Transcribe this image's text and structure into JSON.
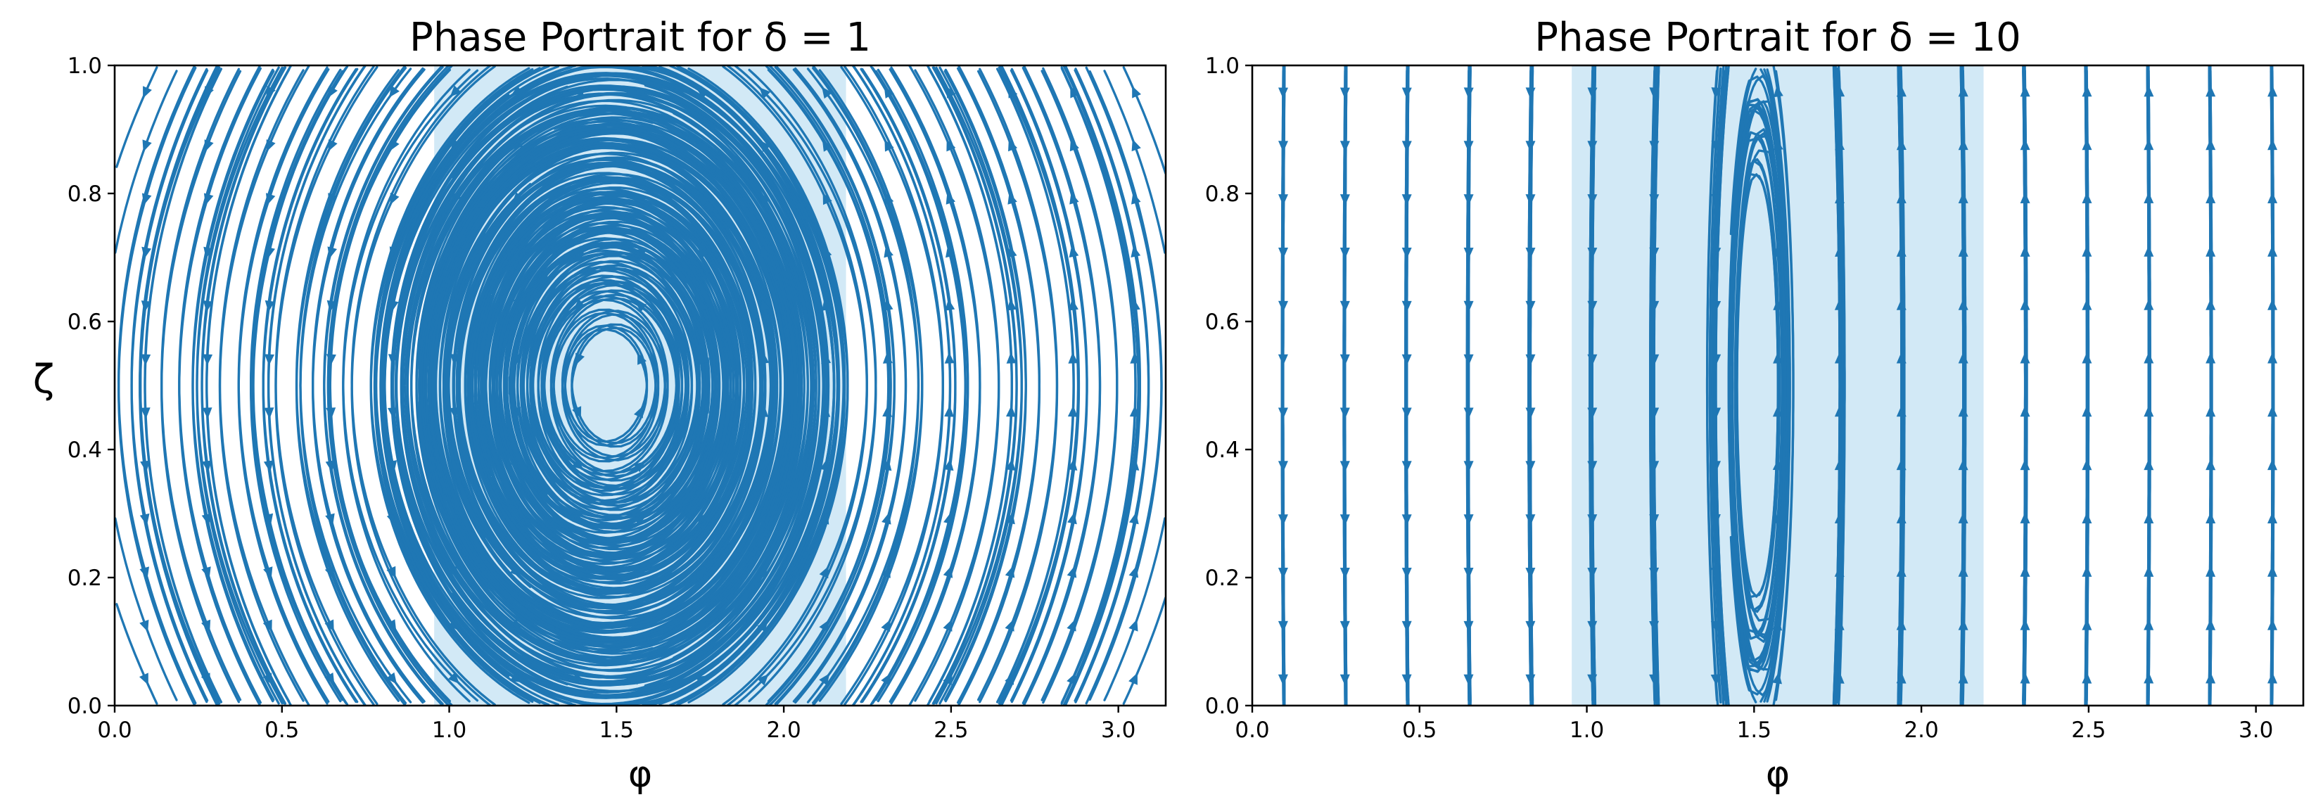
{
  "chart_data": [
    {
      "type": "streamplot",
      "title": "Phase Portrait for δ = 1",
      "delta": 1,
      "xlabel": "φ",
      "ylabel": "ζ",
      "xlim": [
        0.0,
        3.1416
      ],
      "ylim": [
        0.0,
        1.0
      ],
      "xticks": [
        "0.0",
        "0.5",
        "1.0",
        "1.5",
        "2.0",
        "2.5",
        "3.0"
      ],
      "yticks": [
        "0.0",
        "0.2",
        "0.4",
        "0.6",
        "0.8",
        "1.0"
      ],
      "highlight_region": {
        "x": [
          0.955,
          2.186
        ],
        "color": "#d2e9f6"
      },
      "stream_color": "#1f77b4",
      "grid": false,
      "legend": false
    },
    {
      "type": "streamplot",
      "title": "Phase Portrait for δ = 10",
      "delta": 10,
      "xlabel": "φ",
      "ylabel": "",
      "xlim": [
        0.0,
        3.1416
      ],
      "ylim": [
        0.0,
        1.0
      ],
      "xticks": [
        "0.0",
        "0.5",
        "1.0",
        "1.5",
        "2.0",
        "2.5",
        "3.0"
      ],
      "yticks": [
        "0.0",
        "0.2",
        "0.4",
        "0.6",
        "0.8",
        "1.0"
      ],
      "highlight_region": {
        "x": [
          0.955,
          2.186
        ],
        "color": "#d2e9f6"
      },
      "stream_color": "#1f77b4",
      "grid": false,
      "legend": false
    }
  ]
}
